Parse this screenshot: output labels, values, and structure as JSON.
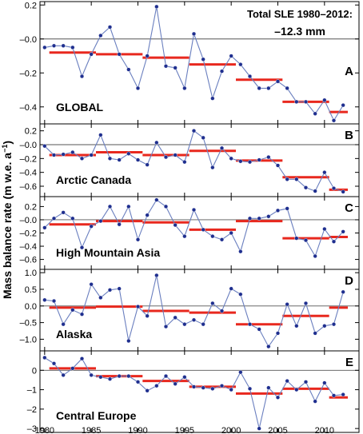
{
  "figure": {
    "ylabel": "Mass balance rate (m w.e. a",
    "ylabel_sup": "−1",
    "ylabel_close": ")",
    "annotation_line1": "Total SLE 1980–2012:",
    "annotation_line2": "–12.3 mm"
  },
  "chart_data": [
    {
      "type": "line",
      "panel_letter": "A",
      "region": "GLOBAL",
      "ylim": [
        -0.5,
        0.22
      ],
      "yticks": [
        0.2,
        0.0,
        -0.2,
        -0.4
      ],
      "ytick_labels": [
        "0.2",
        "–0.0",
        "–0.2",
        "–0.4"
      ],
      "x": [
        1980,
        1981,
        1982,
        1983,
        1984,
        1985,
        1986,
        1987,
        1988,
        1989,
        1990,
        1991,
        1992,
        1993,
        1994,
        1995,
        1996,
        1997,
        1998,
        1999,
        2000,
        2001,
        2002,
        2003,
        2004,
        2005,
        2006,
        2007,
        2008,
        2009,
        2010,
        2011,
        2012
      ],
      "values": [
        -0.05,
        -0.04,
        -0.04,
        -0.05,
        -0.22,
        -0.09,
        0.02,
        0.07,
        -0.09,
        -0.18,
        -0.29,
        -0.1,
        0.19,
        -0.16,
        -0.17,
        -0.29,
        0.03,
        -0.12,
        -0.35,
        -0.19,
        -0.1,
        -0.15,
        -0.22,
        -0.29,
        -0.29,
        -0.25,
        -0.29,
        -0.37,
        -0.37,
        -0.44,
        -0.36,
        -0.48,
        -0.39
      ],
      "means": [
        {
          "start": 1980.5,
          "end": 1985.5,
          "value": -0.08
        },
        {
          "start": 1985.5,
          "end": 1990.5,
          "value": -0.09
        },
        {
          "start": 1990.5,
          "end": 1995.5,
          "value": -0.11
        },
        {
          "start": 1995.5,
          "end": 2000.5,
          "value": -0.15
        },
        {
          "start": 2000.5,
          "end": 2005.5,
          "value": -0.24
        },
        {
          "start": 2005.5,
          "end": 2010.5,
          "value": -0.37
        },
        {
          "start": 2010.5,
          "end": 2012.5,
          "value": -0.43
        }
      ]
    },
    {
      "type": "line",
      "panel_letter": "B",
      "region": "Arctic Canada",
      "ylim": [
        -0.75,
        0.3
      ],
      "yticks": [
        0.2,
        0.0,
        -0.2,
        -0.4,
        -0.6
      ],
      "ytick_labels": [
        "0.2",
        "–0.0",
        "–0.2",
        "–0.4",
        "–0.6"
      ],
      "x": [
        1980,
        1981,
        1982,
        1983,
        1984,
        1985,
        1986,
        1987,
        1988,
        1989,
        1990,
        1991,
        1992,
        1993,
        1994,
        1995,
        1996,
        1997,
        1998,
        1999,
        2000,
        2001,
        2002,
        2003,
        2004,
        2005,
        2006,
        2007,
        2008,
        2009,
        2010,
        2011,
        2012
      ],
      "values": [
        -0.02,
        -0.15,
        -0.14,
        -0.11,
        -0.2,
        -0.15,
        0.14,
        -0.2,
        -0.22,
        -0.13,
        -0.22,
        -0.29,
        0.03,
        -0.18,
        -0.15,
        -0.25,
        0.2,
        0.1,
        -0.33,
        -0.05,
        -0.2,
        -0.24,
        -0.25,
        -0.22,
        -0.18,
        -0.3,
        -0.5,
        -0.5,
        -0.62,
        -0.67,
        -0.4,
        -0.63,
        -0.68
      ],
      "means": [
        {
          "start": 1980.5,
          "end": 1985.5,
          "value": -0.15
        },
        {
          "start": 1985.5,
          "end": 1990.5,
          "value": -0.11
        },
        {
          "start": 1990.5,
          "end": 1995.5,
          "value": -0.15
        },
        {
          "start": 1995.5,
          "end": 2000.5,
          "value": -0.09
        },
        {
          "start": 2000.5,
          "end": 2005.5,
          "value": -0.23
        },
        {
          "start": 2005.5,
          "end": 2010.5,
          "value": -0.47
        },
        {
          "start": 2010.5,
          "end": 2012.5,
          "value": -0.65
        }
      ]
    },
    {
      "type": "line",
      "panel_letter": "C",
      "region": "High Mountain Asia",
      "ylim": [
        -0.75,
        0.35
      ],
      "yticks": [
        0.2,
        0.0,
        -0.2,
        -0.4,
        -0.6
      ],
      "ytick_labels": [
        "0.2",
        "–0.0",
        "–0.2",
        "–0.4",
        "–0.6"
      ],
      "x": [
        1980,
        1981,
        1982,
        1983,
        1984,
        1985,
        1986,
        1987,
        1988,
        1989,
        1990,
        1991,
        1992,
        1993,
        1994,
        1995,
        1996,
        1997,
        1998,
        1999,
        2000,
        2001,
        2002,
        2003,
        2004,
        2005,
        2006,
        2007,
        2008,
        2009,
        2010,
        2011,
        2012
      ],
      "values": [
        -0.12,
        0.02,
        0.11,
        0.02,
        -0.42,
        -0.1,
        -0.02,
        0.2,
        -0.07,
        0.2,
        -0.3,
        0.07,
        0.3,
        0.2,
        -0.08,
        -0.25,
        0.15,
        -0.15,
        -0.25,
        -0.3,
        -0.2,
        -0.48,
        0.02,
        0.02,
        0.05,
        0.14,
        0.17,
        -0.28,
        -0.31,
        -0.55,
        -0.14,
        -0.33,
        -0.18
      ],
      "means": [
        {
          "start": 1980.5,
          "end": 1985.5,
          "value": -0.07
        },
        {
          "start": 1985.5,
          "end": 1990.5,
          "value": -0.02
        },
        {
          "start": 1990.5,
          "end": 1995.5,
          "value": -0.04
        },
        {
          "start": 1995.5,
          "end": 2000.5,
          "value": -0.15
        },
        {
          "start": 2000.5,
          "end": 2005.5,
          "value": -0.02
        },
        {
          "start": 2005.5,
          "end": 2010.5,
          "value": -0.28
        },
        {
          "start": 2010.5,
          "end": 2012.5,
          "value": -0.26
        }
      ]
    },
    {
      "type": "line",
      "panel_letter": "D",
      "region": "Alaska",
      "ylim": [
        -1.35,
        1.1
      ],
      "yticks": [
        1.0,
        0.5,
        0.0,
        -0.5,
        -1.0
      ],
      "ytick_labels": [
        "1.0",
        "0.5",
        "0.0",
        "–0.5",
        "–1.0"
      ],
      "x": [
        1980,
        1981,
        1982,
        1983,
        1984,
        1985,
        1986,
        1987,
        1988,
        1989,
        1990,
        1991,
        1992,
        1993,
        1994,
        1995,
        1996,
        1997,
        1998,
        1999,
        2000,
        2001,
        2002,
        2003,
        2004,
        2005,
        2006,
        2007,
        2008,
        2009,
        2010,
        2011,
        2012
      ],
      "values": [
        0.18,
        0.15,
        -0.55,
        -0.12,
        -0.25,
        0.65,
        0.25,
        0.48,
        0.52,
        -1.05,
        -0.02,
        -0.3,
        0.92,
        -0.62,
        -0.35,
        -0.55,
        -0.42,
        -0.55,
        0.08,
        -0.15,
        0.52,
        0.35,
        -0.55,
        -0.7,
        -1.22,
        -0.82,
        0.05,
        -0.6,
        0.08,
        -0.82,
        -0.6,
        -0.55,
        0.42
      ],
      "means": [
        {
          "start": 1980.5,
          "end": 1985.5,
          "value": -0.05
        },
        {
          "start": 1985.5,
          "end": 1990.5,
          "value": -0.02
        },
        {
          "start": 1990.5,
          "end": 1995.5,
          "value": -0.15
        },
        {
          "start": 1995.5,
          "end": 2000.5,
          "value": -0.2
        },
        {
          "start": 2000.5,
          "end": 2005.5,
          "value": -0.55
        },
        {
          "start": 2005.5,
          "end": 2010.5,
          "value": -0.3
        },
        {
          "start": 2010.5,
          "end": 2012.5,
          "value": -0.05
        }
      ]
    },
    {
      "type": "line",
      "panel_letter": "E",
      "region": "Central Europe",
      "ylim": [
        -3.2,
        1.0
      ],
      "yticks": [
        0,
        -1,
        -2,
        -3
      ],
      "ytick_labels": [
        "0",
        "–1",
        "–2",
        "–3"
      ],
      "x": [
        1980,
        1981,
        1982,
        1983,
        1984,
        1985,
        1986,
        1987,
        1988,
        1989,
        1990,
        1991,
        1992,
        1993,
        1994,
        1995,
        1996,
        1997,
        1998,
        1999,
        2000,
        2001,
        2002,
        2003,
        2004,
        2005,
        2006,
        2007,
        2008,
        2009,
        2010,
        2011,
        2012
      ],
      "values": [
        0.65,
        0.35,
        -0.25,
        0.1,
        0.6,
        -0.25,
        -0.35,
        -0.45,
        -0.3,
        -0.3,
        -0.6,
        -1.05,
        -0.8,
        -0.3,
        -0.7,
        -0.35,
        -0.85,
        -0.9,
        -0.95,
        -0.8,
        -1.0,
        -0.1,
        -0.95,
        -3.0,
        -0.9,
        -1.4,
        -0.55,
        -1.0,
        -0.6,
        -1.6,
        -0.65,
        -1.3,
        -1.25
      ],
      "means": [
        {
          "start": 1980.5,
          "end": 1985.5,
          "value": 0.1
        },
        {
          "start": 1985.5,
          "end": 1990.5,
          "value": -0.3
        },
        {
          "start": 1990.5,
          "end": 1995.5,
          "value": -0.55
        },
        {
          "start": 1995.5,
          "end": 2000.5,
          "value": -0.85
        },
        {
          "start": 2000.5,
          "end": 2005.5,
          "value": -1.2
        },
        {
          "start": 2005.5,
          "end": 2010.5,
          "value": -0.95
        },
        {
          "start": 2010.5,
          "end": 2012.5,
          "value": -1.4
        }
      ]
    }
  ],
  "xaxis": {
    "xlim": [
      1979.5,
      2013.7
    ],
    "ticks": [
      1980,
      1985,
      1990,
      1995,
      2000,
      2005,
      2010
    ],
    "tick_labels": [
      "1980",
      "1985",
      "1990",
      "1995",
      "2000",
      "2005",
      "2010"
    ]
  },
  "colors": {
    "series_line": "#6a7fbf",
    "series_marker": "#1f2f8f",
    "mean_bar": "#e8281e",
    "zero_line": "#555555",
    "frame": "#000000"
  }
}
